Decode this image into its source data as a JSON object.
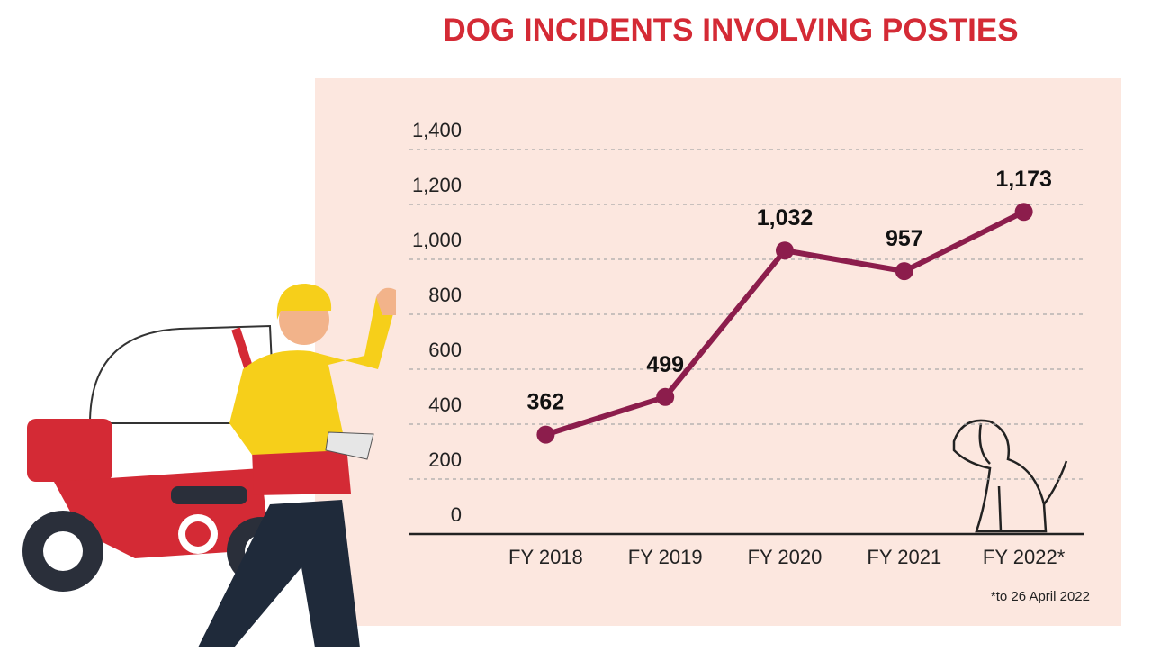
{
  "chart_data": {
    "type": "line",
    "title": "DOG INCIDENTS INVOLVING POSTIES",
    "categories": [
      "FY 2018",
      "FY 2019",
      "FY 2020",
      "FY 2021",
      "FY 2022*"
    ],
    "series": [
      {
        "color": "#8c1d4c",
        "values": [
          362,
          499,
          1032,
          957,
          1173
        ],
        "value_labels": [
          "362",
          "499",
          "1,032",
          "957",
          "1,173"
        ]
      }
    ],
    "ylim": [
      0,
      1400
    ],
    "yticks": [
      0,
      200,
      400,
      600,
      800,
      {
        "value": 1000,
        "label": "1,000"
      },
      {
        "value": 1200,
        "label": "1,200"
      },
      {
        "value": 1400,
        "label": "1,400"
      }
    ],
    "grid": true,
    "footnote": "*to 26 April 2022"
  }
}
